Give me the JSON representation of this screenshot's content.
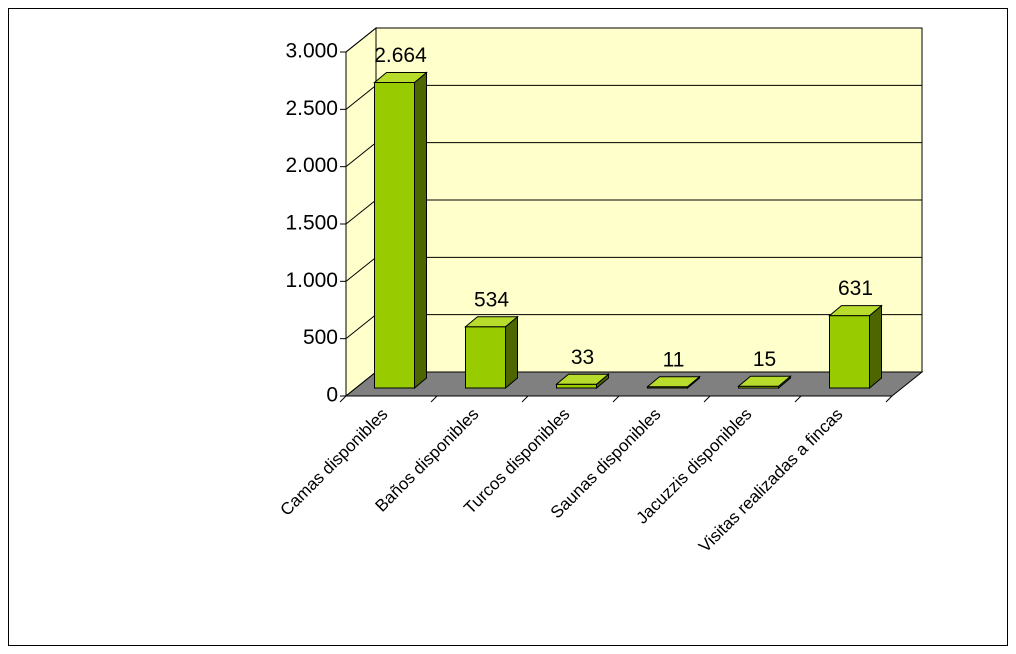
{
  "chart_data": {
    "type": "bar3d",
    "categories": [
      "Camas disponibles",
      "Baños disponibles",
      "Turcos disponibles",
      "Saunas disponibles",
      "Jacuzzis disponibles",
      "Visitas realizadas a fincas"
    ],
    "values": [
      2664,
      534,
      33,
      11,
      15,
      631
    ],
    "value_labels": [
      "2.664",
      "534",
      "33",
      "11",
      "15",
      "631"
    ],
    "color": "#99cc00",
    "ylim": [
      0,
      3000
    ],
    "yticks": [
      0,
      500,
      {
        "value": 1000,
        "label": "1.000"
      },
      {
        "value": 1500,
        "label": "1.500"
      },
      {
        "value": 2000,
        "label": "2.000"
      },
      {
        "value": 2500,
        "label": "2.500"
      },
      {
        "value": 3000,
        "label": "3.000"
      }
    ],
    "grid": true
  }
}
